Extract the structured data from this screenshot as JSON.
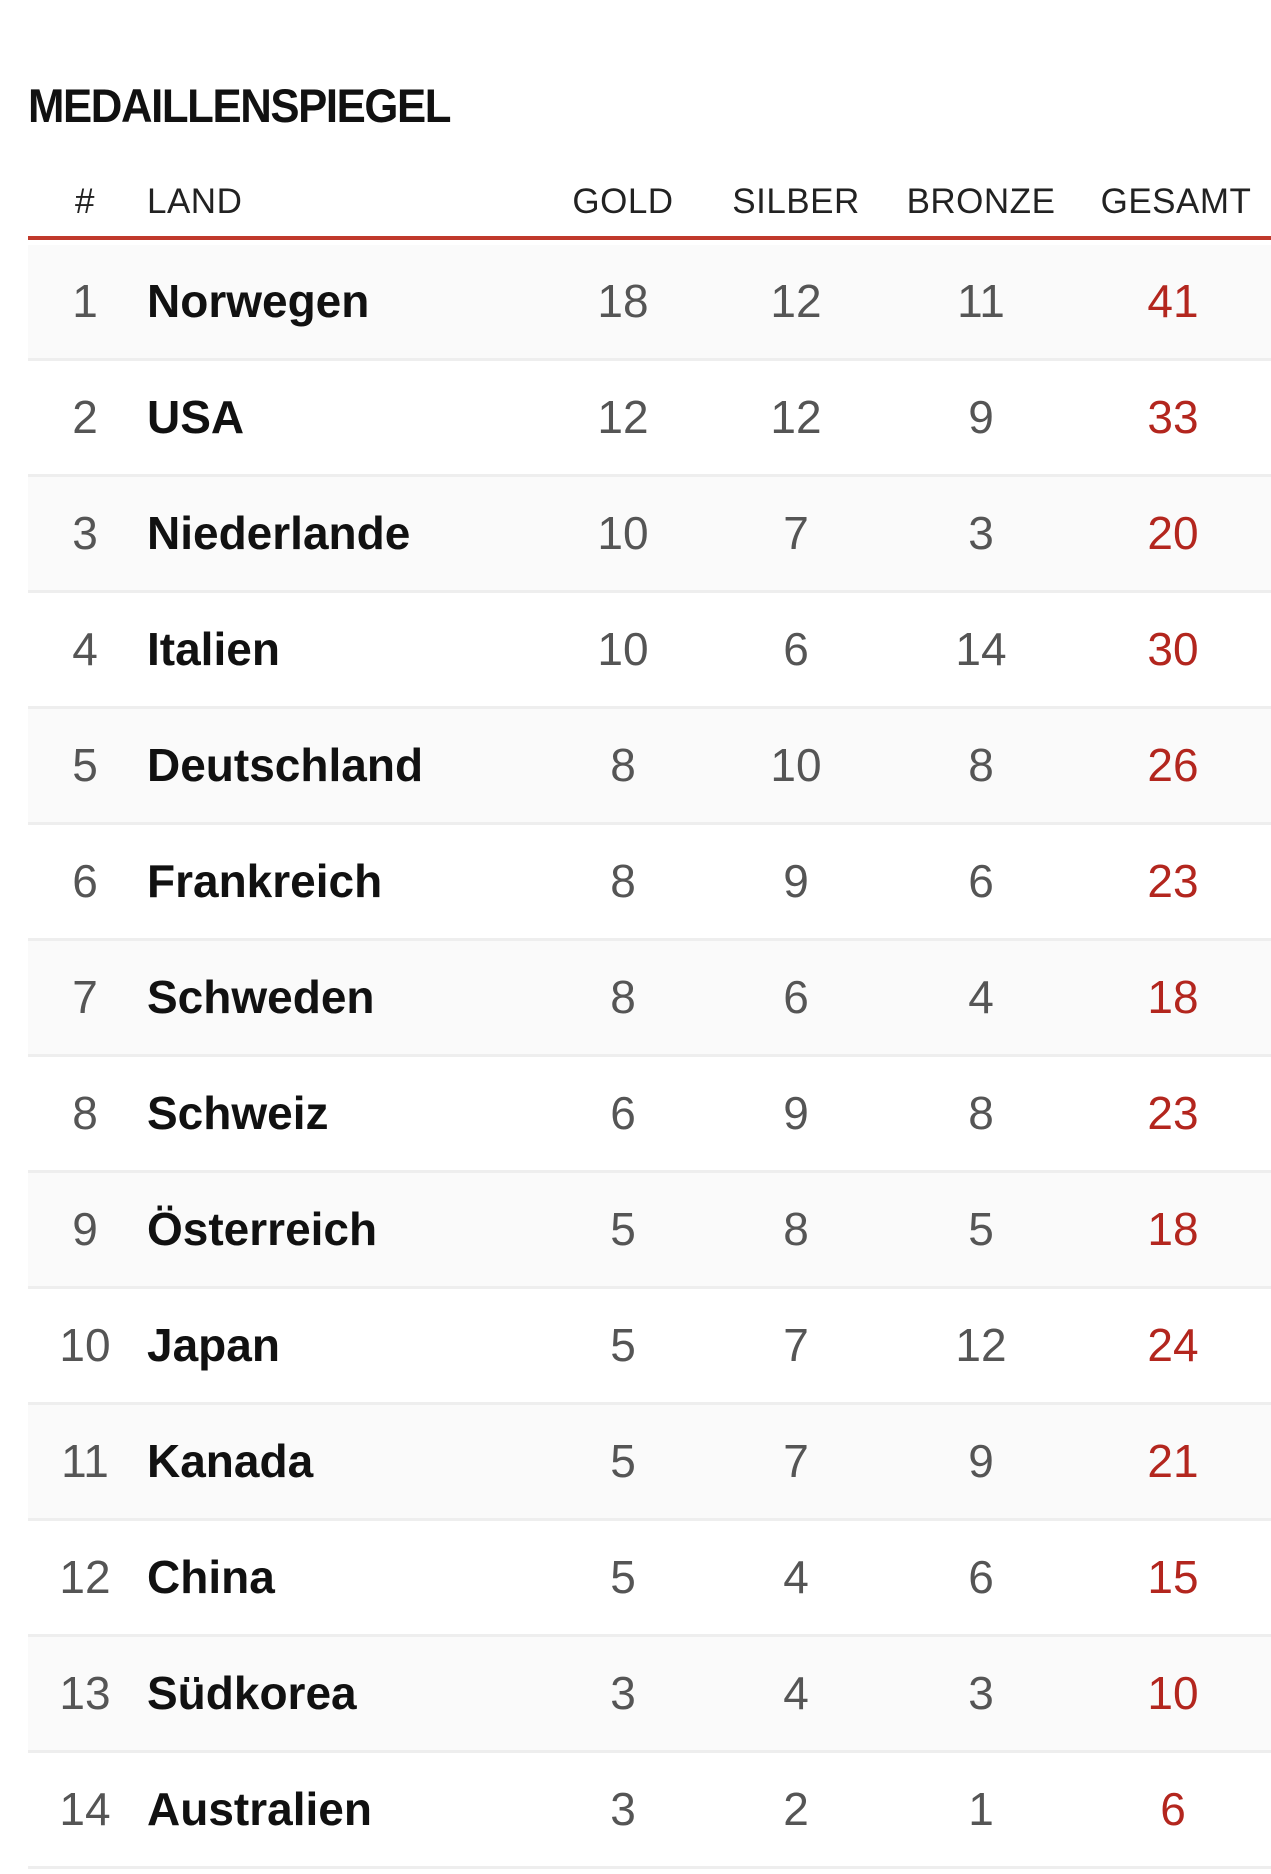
{
  "title": "MEDAILLENSPIEGEL",
  "columns": {
    "rank": "#",
    "land": "LAND",
    "gold": "GOLD",
    "silber": "SILBER",
    "bronze": "BRONZE",
    "gesamt": "GESAMT"
  },
  "colors": {
    "accent": "#c0392b",
    "total": "#b3261e"
  },
  "rows": [
    {
      "rank": "1",
      "land": "Norwegen",
      "gold": "18",
      "silber": "12",
      "bronze": "11",
      "gesamt": "41"
    },
    {
      "rank": "2",
      "land": "USA",
      "gold": "12",
      "silber": "12",
      "bronze": "9",
      "gesamt": "33"
    },
    {
      "rank": "3",
      "land": "Niederlande",
      "gold": "10",
      "silber": "7",
      "bronze": "3",
      "gesamt": "20"
    },
    {
      "rank": "4",
      "land": "Italien",
      "gold": "10",
      "silber": "6",
      "bronze": "14",
      "gesamt": "30"
    },
    {
      "rank": "5",
      "land": "Deutschland",
      "gold": "8",
      "silber": "10",
      "bronze": "8",
      "gesamt": "26"
    },
    {
      "rank": "6",
      "land": "Frankreich",
      "gold": "8",
      "silber": "9",
      "bronze": "6",
      "gesamt": "23"
    },
    {
      "rank": "7",
      "land": "Schweden",
      "gold": "8",
      "silber": "6",
      "bronze": "4",
      "gesamt": "18"
    },
    {
      "rank": "8",
      "land": "Schweiz",
      "gold": "6",
      "silber": "9",
      "bronze": "8",
      "gesamt": "23"
    },
    {
      "rank": "9",
      "land": "Österreich",
      "gold": "5",
      "silber": "8",
      "bronze": "5",
      "gesamt": "18"
    },
    {
      "rank": "10",
      "land": "Japan",
      "gold": "5",
      "silber": "7",
      "bronze": "12",
      "gesamt": "24"
    },
    {
      "rank": "11",
      "land": "Kanada",
      "gold": "5",
      "silber": "7",
      "bronze": "9",
      "gesamt": "21"
    },
    {
      "rank": "12",
      "land": "China",
      "gold": "5",
      "silber": "4",
      "bronze": "6",
      "gesamt": "15"
    },
    {
      "rank": "13",
      "land": "Südkorea",
      "gold": "3",
      "silber": "4",
      "bronze": "3",
      "gesamt": "10"
    },
    {
      "rank": "14",
      "land": "Australien",
      "gold": "3",
      "silber": "2",
      "bronze": "1",
      "gesamt": "6"
    }
  ]
}
